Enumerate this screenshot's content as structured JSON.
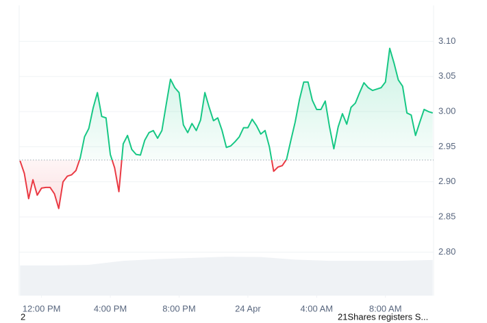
{
  "chart_data": {
    "type": "line",
    "x": [
      10.75,
      11,
      11.25,
      11.5,
      11.75,
      12,
      12.25,
      12.5,
      12.75,
      13,
      13.25,
      13.5,
      13.75,
      14,
      14.25,
      14.5,
      14.75,
      15,
      15.25,
      15.5,
      15.75,
      16,
      16.25,
      16.5,
      16.75,
      17,
      17.25,
      17.5,
      17.75,
      18,
      18.25,
      18.5,
      18.75,
      19,
      19.25,
      19.5,
      19.75,
      20,
      20.25,
      20.5,
      20.75,
      21,
      21.25,
      21.5,
      21.75,
      22,
      22.25,
      22.5,
      22.75,
      23,
      23.25,
      23.5,
      23.75,
      24,
      24.25,
      24.5,
      24.75,
      25,
      25.25,
      25.5,
      25.75,
      26,
      26.25,
      26.5,
      26.75,
      27,
      27.25,
      27.5,
      27.75,
      28,
      28.25,
      28.5,
      28.75,
      29,
      29.25,
      29.5,
      29.75,
      30,
      30.25,
      30.5,
      30.75,
      31,
      31.25,
      31.5,
      31.75,
      32,
      32.25,
      32.5,
      32.75,
      33,
      33.25,
      33.5,
      33.75,
      34,
      34.25,
      34.5,
      34.75
    ],
    "series": [
      {
        "color": "#16c784",
        "below_color": "#ea3943",
        "values": [
          2.93,
          2.912,
          2.876,
          2.903,
          2.881,
          2.891,
          2.892,
          2.892,
          2.883,
          2.862,
          2.9,
          2.908,
          2.91,
          2.916,
          2.934,
          2.964,
          2.976,
          3.005,
          3.027,
          2.993,
          2.991,
          2.939,
          2.92,
          2.886,
          2.954,
          2.966,
          2.946,
          2.939,
          2.938,
          2.959,
          2.97,
          2.973,
          2.962,
          2.973,
          3.01,
          3.046,
          3.034,
          3.027,
          2.981,
          2.97,
          2.983,
          2.973,
          2.988,
          3.027,
          3.006,
          2.987,
          2.991,
          2.973,
          2.949,
          2.951,
          2.957,
          2.964,
          2.977,
          2.977,
          2.989,
          2.98,
          2.968,
          2.973,
          2.95,
          2.915,
          2.921,
          2.923,
          2.932,
          2.959,
          2.985,
          3.017,
          3.042,
          3.042,
          3.016,
          3.003,
          3.003,
          3.015,
          2.978,
          2.947,
          2.978,
          2.997,
          2.982,
          3.006,
          3.012,
          3.027,
          3.041,
          3.034,
          3.03,
          3.032,
          3.034,
          3.042,
          3.09,
          3.069,
          3.045,
          3.036,
          2.998,
          2.995,
          2.966,
          2.985,
          3.003,
          3.0,
          2.998
        ]
      }
    ],
    "baseline": 2.931,
    "volume": {
      "axis": "y2",
      "color": "#eff2f5",
      "x": [
        10.75,
        12.75,
        14.75,
        16.75,
        18.75,
        20.75,
        22.75,
        24.75,
        26.75,
        28.75,
        30.75,
        32.75,
        34.75
      ],
      "values": [
        10.4,
        10.4,
        10.6,
        12.0,
        12.6,
        13.0,
        13.4,
        13.3,
        12.4,
        12.0,
        12.0,
        12.0,
        12.3
      ]
    },
    "xlim": [
      10.7,
      34.8
    ],
    "xticks": [
      {
        "value": 12,
        "label": "12:00 PM"
      },
      {
        "value": 16,
        "label": "4:00 PM"
      },
      {
        "value": 20,
        "label": "8:00 PM"
      },
      {
        "value": 24,
        "label": "24 Apr"
      },
      {
        "value": 28,
        "label": "4:00 AM"
      },
      {
        "value": 32,
        "label": "8:00 AM"
      }
    ],
    "ylim": [
      2.738,
      3.151
    ],
    "yticks": [
      {
        "value": 2.8,
        "label": "2.80"
      },
      {
        "value": 2.85,
        "label": "2.85"
      },
      {
        "value": 2.9,
        "label": "2.90"
      },
      {
        "value": 2.95,
        "label": "2.95"
      },
      {
        "value": 3,
        "label": "3.00"
      },
      {
        "value": 3.05,
        "label": "3.05"
      },
      {
        "value": 3.1,
        "label": "3.10"
      }
    ],
    "y2lim": [
      0,
      100
    ],
    "grid": true
  },
  "footer": {
    "left": "2",
    "right": "21Shares registers S..."
  }
}
